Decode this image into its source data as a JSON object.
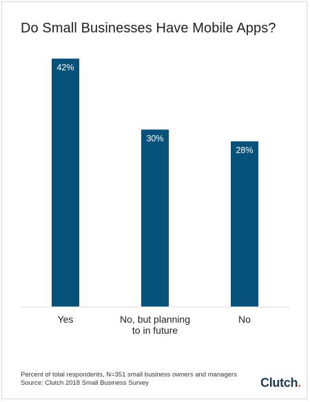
{
  "title": "Do Small Businesses Have Mobile Apps?",
  "footnote": {
    "line1": "Percent of total respondents, N=351 small business owners and managers",
    "line2": "Source: Clutch 2018 Small Business Survey"
  },
  "brand": "Clutch",
  "colors": {
    "bar": "#07527a",
    "axis": "#d9d9d9"
  },
  "chart_data": {
    "type": "bar",
    "title": "Do Small Businesses Have Mobile Apps?",
    "categories": [
      [
        "Yes"
      ],
      [
        "No, but planning",
        "to in future"
      ],
      [
        "No"
      ]
    ],
    "values": [
      42,
      30,
      28
    ],
    "value_labels": [
      "42%",
      "30%",
      "28%"
    ],
    "ylim": [
      0,
      42
    ],
    "grid": false,
    "legend": "none"
  }
}
